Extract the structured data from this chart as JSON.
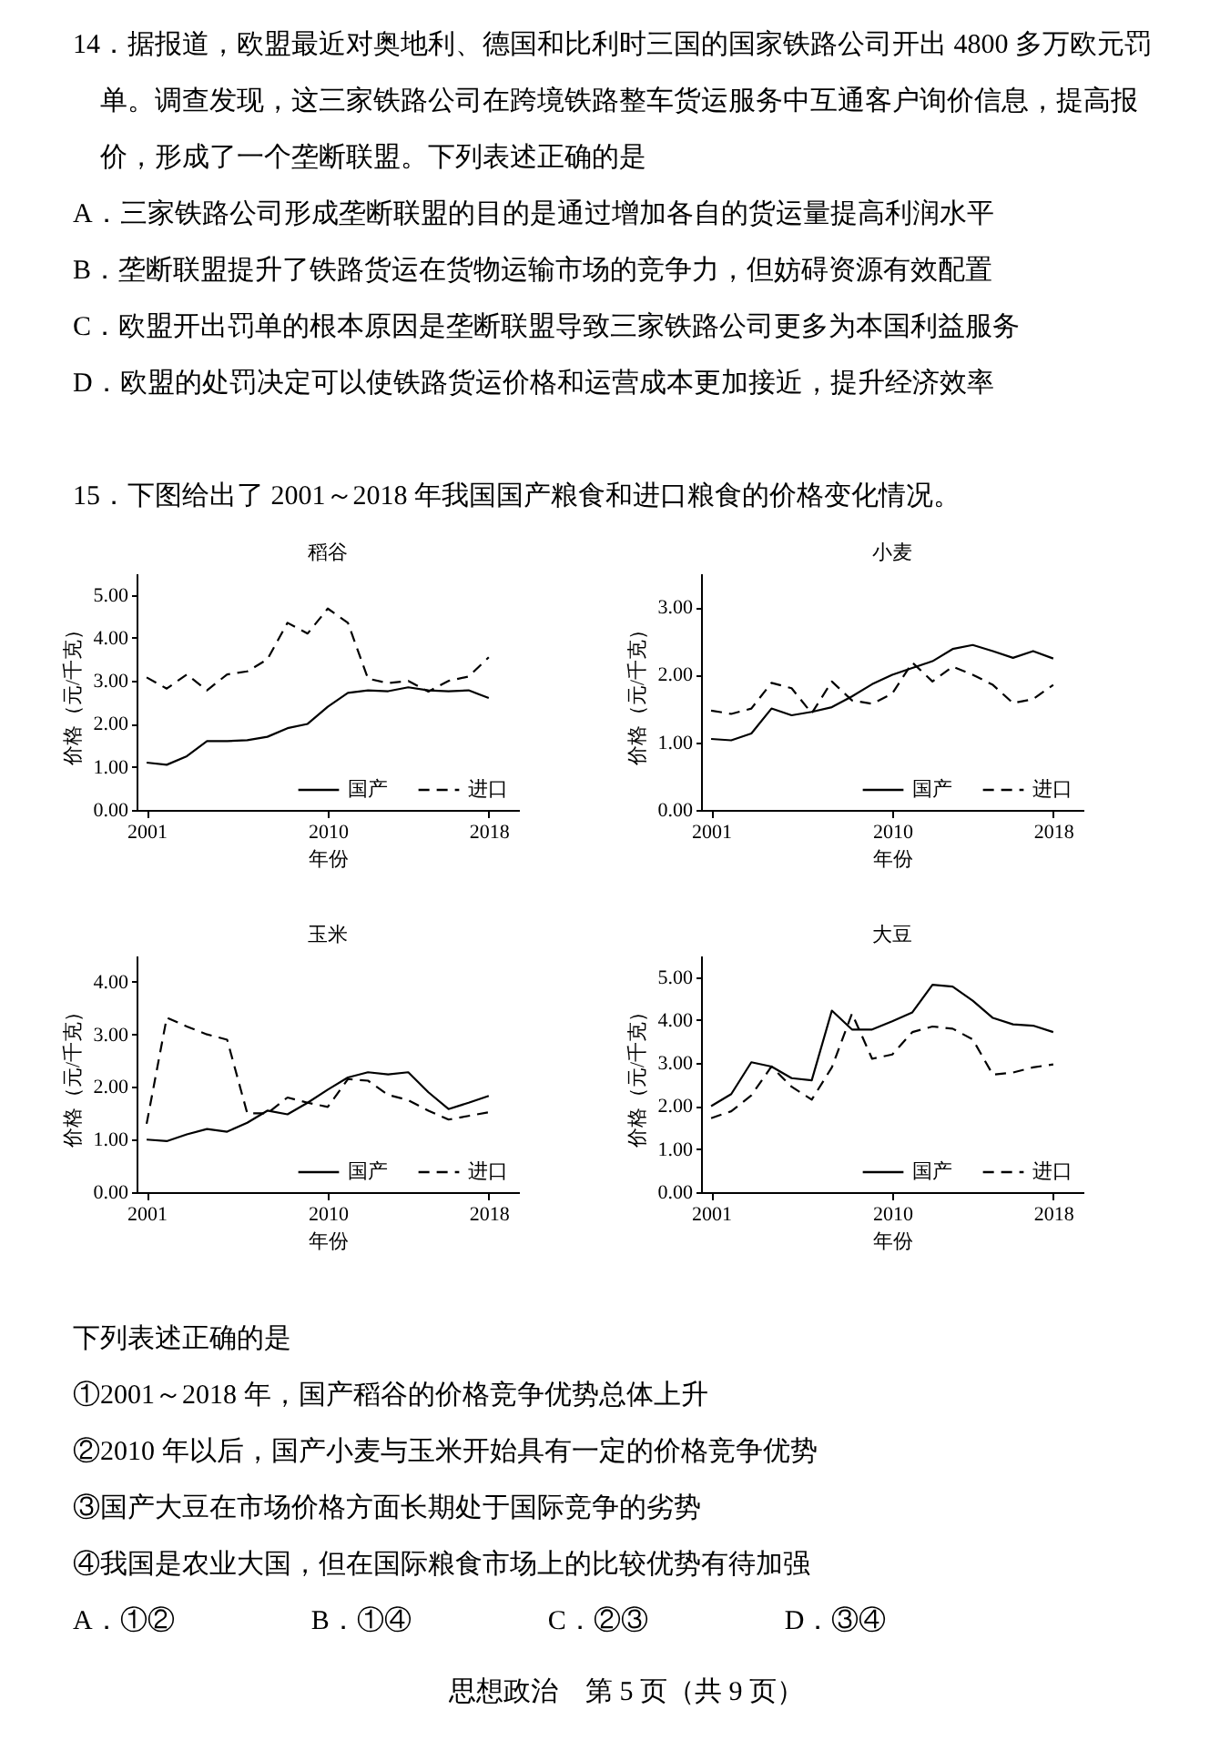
{
  "chart_data": [
    {
      "type": "other",
      "annotations": [
        "14．据报道，欧盟最近对奥地利、德国和比利时三国的国家铁路公司开出 4800 多万欧元罚单。调查发现，这三家铁路公司在跨境铁路整车货运服务中互通客户询价信息，提高报价，形成了一个垄断联盟。下列表述正确的是",
        "A．三家铁路公司形成垄断联盟的目的是通过增加各自的货运量提高利润水平",
        "B．垄断联盟提升了铁路货运在货物运输市场的竞争力，但妨碍资源有效配置",
        "C．欧盟开出罚单的根本原因是垄断联盟导致三家铁路公司更多为本国利益服务",
        "D．欧盟的处罚决定可以使铁路货运价格和运营成本更加接近，提升经济效率",
        "15．下图给出了 2001～2018 年我国国产粮食和进口粮食的价格变化情况。"
      ]
    },
    {
      "type": "line",
      "title": "稻谷",
      "xlabel": "年份",
      "ylabel": "价格（元/千克）",
      "legend": "bottom right",
      "x": [
        2001,
        2002,
        2003,
        2004,
        2005,
        2006,
        2007,
        2008,
        2009,
        2010,
        2011,
        2012,
        2013,
        2014,
        2015,
        2016,
        2017,
        2018
      ],
      "xlim": [
        2000.5,
        2019.5
      ],
      "xticks": [
        2001,
        2010,
        2018
      ],
      "ylim": [
        0,
        5.5
      ],
      "yticks": [
        {
          "value": 0,
          "label": "0.00"
        },
        {
          "value": 1,
          "label": "1.00"
        },
        {
          "value": 2,
          "label": "2.00"
        },
        {
          "value": 3,
          "label": "3.00"
        },
        {
          "value": 4,
          "label": "4.00"
        },
        {
          "value": 5,
          "label": "5.00"
        }
      ],
      "series": [
        {
          "name": "国产",
          "color": "#000000",
          "line_style": "solid",
          "values": [
            1.1,
            1.05,
            1.25,
            1.6,
            1.6,
            1.62,
            1.7,
            1.9,
            2.0,
            2.4,
            2.72,
            2.78,
            2.76,
            2.85,
            2.78,
            2.76,
            2.78,
            2.6
          ]
        },
        {
          "name": "进口",
          "color": "#000000",
          "line_style": "dashed",
          "values": [
            3.08,
            2.82,
            3.15,
            2.78,
            3.15,
            3.22,
            3.5,
            4.35,
            4.1,
            4.68,
            4.35,
            3.05,
            2.95,
            3.0,
            2.75,
            3.0,
            3.1,
            3.55
          ]
        }
      ]
    },
    {
      "type": "line",
      "title": "小麦",
      "xlabel": "年份",
      "ylabel": "价格（元/千克）",
      "legend": "bottom right",
      "x": [
        2001,
        2002,
        2003,
        2004,
        2005,
        2006,
        2007,
        2008,
        2009,
        2010,
        2011,
        2012,
        2013,
        2014,
        2015,
        2016,
        2017,
        2018
      ],
      "xlim": [
        2000.5,
        2019.5
      ],
      "xticks": [
        2001,
        2010,
        2018
      ],
      "ylim": [
        0,
        3.5
      ],
      "yticks": [
        {
          "value": 0,
          "label": "0.00"
        },
        {
          "value": 1,
          "label": "1.00"
        },
        {
          "value": 2,
          "label": "2.00"
        },
        {
          "value": 3,
          "label": "3.00"
        }
      ],
      "series": [
        {
          "name": "国产",
          "color": "#000000",
          "line_style": "solid",
          "values": [
            1.05,
            1.03,
            1.13,
            1.5,
            1.4,
            1.45,
            1.52,
            1.68,
            1.86,
            2.0,
            2.1,
            2.2,
            2.38,
            2.44,
            2.35,
            2.25,
            2.35,
            2.24
          ]
        },
        {
          "name": "进口",
          "color": "#000000",
          "line_style": "dashed",
          "values": [
            1.47,
            1.42,
            1.5,
            1.88,
            1.8,
            1.43,
            1.9,
            1.62,
            1.57,
            1.72,
            2.18,
            1.9,
            2.12,
            2.0,
            1.85,
            1.58,
            1.64,
            1.85
          ]
        }
      ]
    },
    {
      "type": "line",
      "title": "玉米",
      "xlabel": "年份",
      "ylabel": "价格（元/千克）",
      "legend": "bottom right",
      "x": [
        2001,
        2002,
        2003,
        2004,
        2005,
        2006,
        2007,
        2008,
        2009,
        2010,
        2011,
        2012,
        2013,
        2014,
        2015,
        2016,
        2017,
        2018
      ],
      "xlim": [
        2000.5,
        2019.5
      ],
      "xticks": [
        2001,
        2010,
        2018
      ],
      "ylim": [
        0,
        4.5
      ],
      "yticks": [
        {
          "value": 0,
          "label": "0.00"
        },
        {
          "value": 1,
          "label": "1.00"
        },
        {
          "value": 2,
          "label": "2.00"
        },
        {
          "value": 3,
          "label": "3.00"
        },
        {
          "value": 4,
          "label": "4.00"
        }
      ],
      "series": [
        {
          "name": "国产",
          "color": "#000000",
          "line_style": "solid",
          "values": [
            1.0,
            0.97,
            1.1,
            1.2,
            1.15,
            1.32,
            1.55,
            1.48,
            1.7,
            1.95,
            2.18,
            2.28,
            2.24,
            2.28,
            1.9,
            1.58,
            1.7,
            1.83
          ]
        },
        {
          "name": "进口",
          "color": "#000000",
          "line_style": "dashed",
          "values": [
            1.3,
            3.32,
            3.15,
            3.0,
            2.9,
            1.5,
            1.5,
            1.8,
            1.7,
            1.62,
            2.15,
            2.12,
            1.85,
            1.75,
            1.55,
            1.38,
            1.45,
            1.52
          ]
        }
      ]
    },
    {
      "type": "line",
      "title": "大豆",
      "xlabel": "年份",
      "ylabel": "价格（元/千克）",
      "legend": "bottom right",
      "x": [
        2001,
        2002,
        2003,
        2004,
        2005,
        2006,
        2007,
        2008,
        2009,
        2010,
        2011,
        2012,
        2013,
        2014,
        2015,
        2016,
        2017,
        2018
      ],
      "xlim": [
        2000.5,
        2019.5
      ],
      "xticks": [
        2001,
        2010,
        2018
      ],
      "ylim": [
        0,
        5.5
      ],
      "yticks": [
        {
          "value": 0,
          "label": "0.00"
        },
        {
          "value": 1,
          "label": "1.00"
        },
        {
          "value": 2,
          "label": "2.00"
        },
        {
          "value": 3,
          "label": "3.00"
        },
        {
          "value": 4,
          "label": "4.00"
        },
        {
          "value": 5,
          "label": "5.00"
        }
      ],
      "series": [
        {
          "name": "国产",
          "color": "#000000",
          "line_style": "solid",
          "values": [
            2.0,
            2.28,
            3.02,
            2.92,
            2.65,
            2.6,
            4.22,
            3.78,
            3.78,
            3.97,
            4.18,
            4.82,
            4.78,
            4.45,
            4.05,
            3.9,
            3.87,
            3.72
          ]
        },
        {
          "name": "进口",
          "color": "#000000",
          "line_style": "dashed",
          "values": [
            1.72,
            1.88,
            2.25,
            2.92,
            2.45,
            2.15,
            2.9,
            4.15,
            3.1,
            3.2,
            3.72,
            3.85,
            3.8,
            3.55,
            2.73,
            2.78,
            2.9,
            2.97
          ]
        }
      ]
    },
    {
      "type": "other",
      "annotations": [
        "下列表述正确的是",
        "①2001～2018 年，国产稻谷的价格竞争优势总体上升",
        "②2010 年以后，国产小麦与玉米开始具有一定的价格竞争优势",
        "③国产大豆在市场价格方面长期处于国际竞争的劣势",
        "④我国是农业大国，但在国际粮食市场上的比较优势有待加强",
        "A．①②　　　　　B．①④　　　　　C．②③　　　　　D．③④",
        "思想政治　第 5 页（共 9 页）"
      ]
    }
  ]
}
